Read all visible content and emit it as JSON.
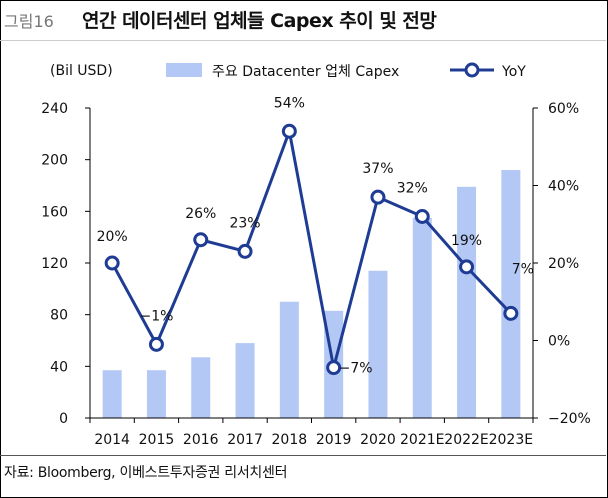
{
  "figure": {
    "number": "그림16",
    "title": "연간 데이터센터 업체들 Capex 추이 및 전망",
    "source": "자료: Bloomberg, 이베스트투자증권 리서치센터"
  },
  "chart_data": {
    "type": "bar",
    "categories": [
      "2014",
      "2015",
      "2016",
      "2017",
      "2018",
      "2019",
      "2020",
      "2021E",
      "2022E",
      "2023E"
    ],
    "series": [
      {
        "name": "주요 Datacenter 업체 Capex",
        "type": "bar",
        "axis": "left",
        "color": "#b4c8f5",
        "values": [
          37,
          37,
          47,
          58,
          90,
          83,
          114,
          155,
          179,
          192
        ]
      },
      {
        "name": "YoY",
        "type": "line",
        "axis": "right",
        "color": "#1f3c94",
        "values": [
          20,
          -1,
          26,
          23,
          54,
          -7,
          37,
          32,
          19,
          7
        ],
        "labels": [
          "20%",
          "−1%",
          "26%",
          "23%",
          "54%",
          "−7%",
          "37%",
          "32%",
          "19%",
          "7%"
        ]
      }
    ],
    "left_axis": {
      "label": "(Bil USD)",
      "min": 0,
      "max": 240,
      "ticks": [
        "0",
        "40",
        "80",
        "120",
        "160",
        "200",
        "240"
      ]
    },
    "right_axis": {
      "min": -20,
      "max": 60,
      "ticks": [
        "−20%",
        "0%",
        "20%",
        "40%",
        "60%"
      ]
    },
    "grid": false,
    "legend_position": "top"
  }
}
